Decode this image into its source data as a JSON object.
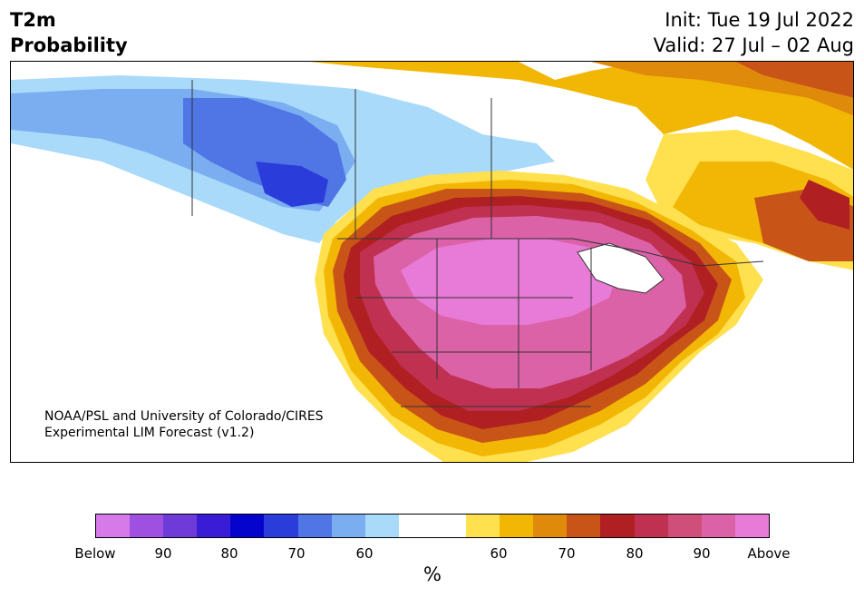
{
  "title": {
    "variable": "T2m",
    "subtitle": "Probability",
    "init": "Init: Tue 19 Jul 2022",
    "valid": "Valid: 27 Jul – 02 Aug"
  },
  "credit": {
    "line1": "NOAA/PSL and University of Colorado/CIRES",
    "line2": "Experimental LIM Forecast (v1.2)"
  },
  "colorbar": {
    "colors": [
      "#d67ae9",
      "#a050e0",
      "#6e3ad8",
      "#3b1cd6",
      "#0404cc",
      "#2a3ddb",
      "#5076e6",
      "#7aaef0",
      "#a9dafa",
      "#ffffff",
      "#ffffff",
      "#ffe04f",
      "#f2b705",
      "#e08a0c",
      "#c95418",
      "#b02022",
      "#c03050",
      "#d04e7a",
      "#dc62a8",
      "#e87ad8"
    ],
    "tick_labels": [
      "Below",
      "90",
      "80",
      "70",
      "60",
      "60",
      "70",
      "80",
      "90",
      "Above"
    ],
    "unit": "%"
  },
  "map": {
    "region": "North America",
    "colors": {
      "very_warm": "#e87ad8",
      "warm_90": "#dc62a8",
      "warm_80": "#c03050",
      "warm_70": "#c95418",
      "warm_60": "#f2b705",
      "warm_55": "#ffe04f",
      "cool_55": "#a9dafa",
      "cool_60": "#7aaef0",
      "cool_70": "#5076e6",
      "cool_80": "#2a3ddb",
      "neutral": "#ffffff",
      "border": "#333333"
    }
  }
}
